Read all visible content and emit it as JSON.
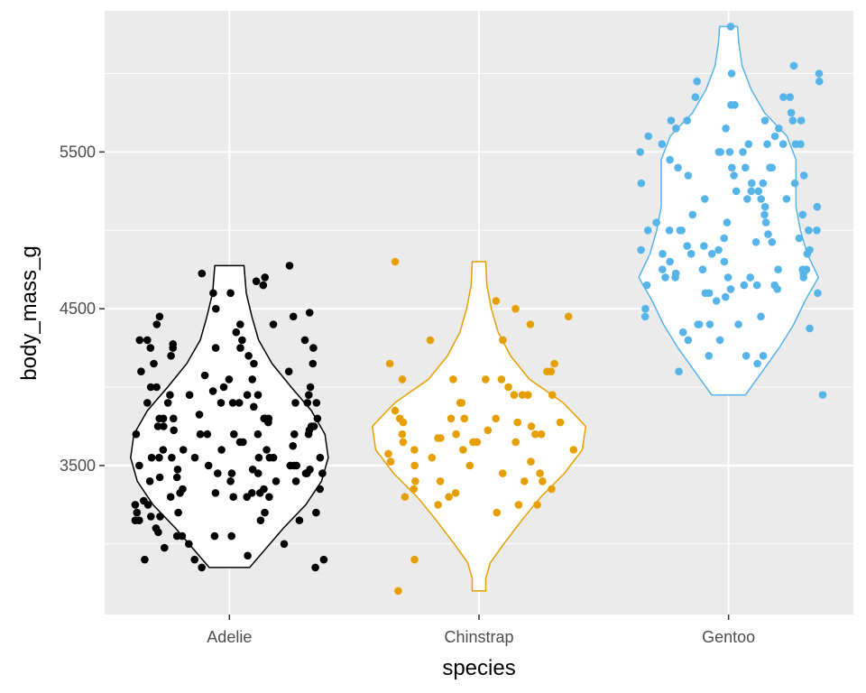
{
  "chart_data": {
    "type": "violin",
    "xlabel": "species",
    "ylabel": "body_mass_g",
    "categories": [
      "Adelie",
      "Chinstrap",
      "Gentoo"
    ],
    "ylim": [
      2550,
      6400
    ],
    "yticks": [
      3500,
      4500,
      5500
    ],
    "grid": true,
    "legend": "none",
    "colors": {
      "Adelie": "#000000",
      "Chinstrap": "#E69F00",
      "Gentoo": "#56B4E9"
    },
    "violins": [
      {
        "name": "Adelie",
        "range": [
          2850,
          4775
        ],
        "profile": [
          [
            2850,
            0.18
          ],
          [
            2950,
            0.3
          ],
          [
            3100,
            0.48
          ],
          [
            3250,
            0.68
          ],
          [
            3400,
            0.82
          ],
          [
            3550,
            0.88
          ],
          [
            3700,
            0.85
          ],
          [
            3850,
            0.73
          ],
          [
            4000,
            0.55
          ],
          [
            4150,
            0.38
          ],
          [
            4300,
            0.26
          ],
          [
            4450,
            0.2
          ],
          [
            4600,
            0.15
          ],
          [
            4775,
            0.13
          ]
        ]
      },
      {
        "name": "Chinstrap",
        "range": [
          2700,
          4800
        ],
        "profile": [
          [
            2700,
            0.06
          ],
          [
            2780,
            0.06
          ],
          [
            2880,
            0.1
          ],
          [
            3000,
            0.22
          ],
          [
            3150,
            0.38
          ],
          [
            3300,
            0.55
          ],
          [
            3450,
            0.76
          ],
          [
            3600,
            0.92
          ],
          [
            3750,
            0.95
          ],
          [
            3900,
            0.75
          ],
          [
            4050,
            0.45
          ],
          [
            4200,
            0.28
          ],
          [
            4350,
            0.17
          ],
          [
            4500,
            0.11
          ],
          [
            4650,
            0.07
          ],
          [
            4800,
            0.06
          ]
        ]
      },
      {
        "name": "Gentoo",
        "range": [
          3950,
          6300
        ],
        "profile": [
          [
            3950,
            0.15
          ],
          [
            4100,
            0.3
          ],
          [
            4250,
            0.45
          ],
          [
            4400,
            0.58
          ],
          [
            4550,
            0.68
          ],
          [
            4700,
            0.8
          ],
          [
            4850,
            0.7
          ],
          [
            5000,
            0.64
          ],
          [
            5150,
            0.6
          ],
          [
            5300,
            0.6
          ],
          [
            5450,
            0.6
          ],
          [
            5600,
            0.52
          ],
          [
            5750,
            0.32
          ],
          [
            5900,
            0.2
          ],
          [
            6050,
            0.12
          ],
          [
            6200,
            0.09
          ],
          [
            6300,
            0.08
          ]
        ]
      }
    ],
    "points": [
      {
        "name": "Adelie",
        "y": [
          3750,
          3800,
          3250,
          3450,
          3650,
          3625,
          4675,
          3475,
          4250,
          3300,
          3700,
          3200,
          3800,
          4400,
          3700,
          3450,
          4500,
          3325,
          4200,
          3400,
          3600,
          3800,
          3950,
          3800,
          3800,
          3550,
          3200,
          3150,
          3950,
          3250,
          3900,
          3300,
          3900,
          3325,
          4150,
          3950,
          3550,
          3300,
          4650,
          3150,
          3900,
          3100,
          4400,
          3000,
          4600,
          3425,
          2975,
          3450,
          4150,
          3500,
          4300,
          3450,
          4050,
          2900,
          3700,
          3550,
          3800,
          2850,
          3750,
          3150,
          4400,
          3600,
          4050,
          2850,
          3950,
          3350,
          4100,
          3050,
          4450,
          3600,
          3900,
          3550,
          4150,
          3700,
          4250,
          3700,
          3900,
          3550,
          4000,
          3200,
          4700,
          3800,
          4200,
          3350,
          3550,
          3800,
          3500,
          3950,
          3600,
          3550,
          4300,
          3400,
          4450,
          3300,
          4300,
          3700,
          4350,
          2900,
          4100,
          3725,
          4725,
          3075,
          4250,
          2925,
          3550,
          3750,
          3900,
          3175,
          4775,
          3825,
          4600,
          3200,
          4275,
          3900,
          4075,
          2900,
          3775,
          3350,
          3325,
          3150,
          3500,
          3450,
          3875,
          3050,
          4000,
          3275,
          4300,
          3050,
          4000,
          3325,
          3500,
          3500,
          4475,
          3425,
          3900,
          3175,
          3975,
          3400,
          4250,
          3400,
          3475,
          3050,
          3725,
          3000,
          3650,
          4250,
          3475,
          3450,
          3750,
          3700,
          4000
        ]
      },
      {
        "name": "Chinstrap",
        "y": [
          3500,
          3900,
          3650,
          3525,
          3725,
          3950,
          3250,
          3750,
          4150,
          3700,
          3800,
          3775,
          3700,
          4050,
          3575,
          4050,
          3300,
          3700,
          3450,
          4400,
          3600,
          3400,
          2900,
          3800,
          3300,
          4150,
          3400,
          3800,
          3700,
          4550,
          3200,
          4300,
          3350,
          4100,
          3600,
          3900,
          3850,
          4800,
          2700,
          4500,
          3950,
          3650,
          3550,
          3500,
          3675,
          4450,
          3400,
          4300,
          3250,
          3675,
          3325,
          3950,
          3600,
          4050,
          3350,
          3450,
          3250,
          4050,
          3800,
          3525,
          3950,
          3650,
          3650,
          4000,
          3400,
          3775,
          4100,
          3775
        ]
      },
      {
        "name": "Gentoo",
        "y": [
          4500,
          5700,
          4450,
          5700,
          5400,
          4550,
          4800,
          5200,
          4400,
          5150,
          4650,
          5550,
          4650,
          5850,
          4200,
          5850,
          4150,
          6300,
          4800,
          5350,
          5700,
          5000,
          4400,
          5050,
          5000,
          5100,
          4100,
          5650,
          4600,
          5550,
          5250,
          4700,
          5050,
          6050,
          5150,
          5400,
          4950,
          5250,
          4350,
          5350,
          3950,
          5700,
          4300,
          4750,
          5550,
          4900,
          4200,
          5400,
          5100,
          5300,
          4850,
          5300,
          4400,
          5000,
          4900,
          5050,
          4300,
          5000,
          4450,
          5550,
          4200,
          5300,
          4400,
          5650,
          4700,
          5700,
          4650,
          5800,
          4700,
          5550,
          4750,
          5000,
          5100,
          5200,
          4700,
          5800,
          4600,
          6000,
          4750,
          5950,
          4625,
          5450,
          4725,
          5350,
          4750,
          5600,
          4600,
          5300,
          4875,
          5550,
          4950,
          5400,
          4750,
          5650,
          4850,
          5200,
          4925,
          4875,
          4625,
          5250,
          4850,
          5600,
          4975,
          5500,
          4725,
          5500,
          4700,
          5500,
          4575,
          5500,
          5000,
          5950,
          4650,
          5500,
          4375,
          5850,
          4875,
          6000,
          4925,
          4850,
          5750,
          5200,
          5400
        ]
      }
    ]
  }
}
